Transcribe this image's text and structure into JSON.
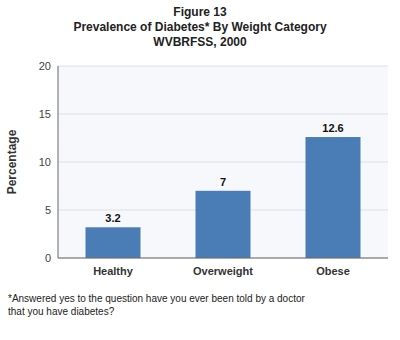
{
  "chart_data": {
    "type": "bar",
    "title": "Figure 13\nPrevalence of Diabetes* By Weight Category\nWVBRFSS, 2000",
    "ylabel": "Percentage",
    "categories": [
      "Healthy",
      "Overweight",
      "Obese"
    ],
    "values": [
      3.2,
      7.0,
      12.6
    ],
    "color": "#4a7db5",
    "ylim": [
      0,
      20
    ],
    "yticks": [
      0,
      5,
      10,
      15,
      20
    ],
    "grid": true,
    "data_labels": true,
    "footnote": "*Answered yes to the question have you ever been told by a doctor\nthat you have diabetes?"
  }
}
